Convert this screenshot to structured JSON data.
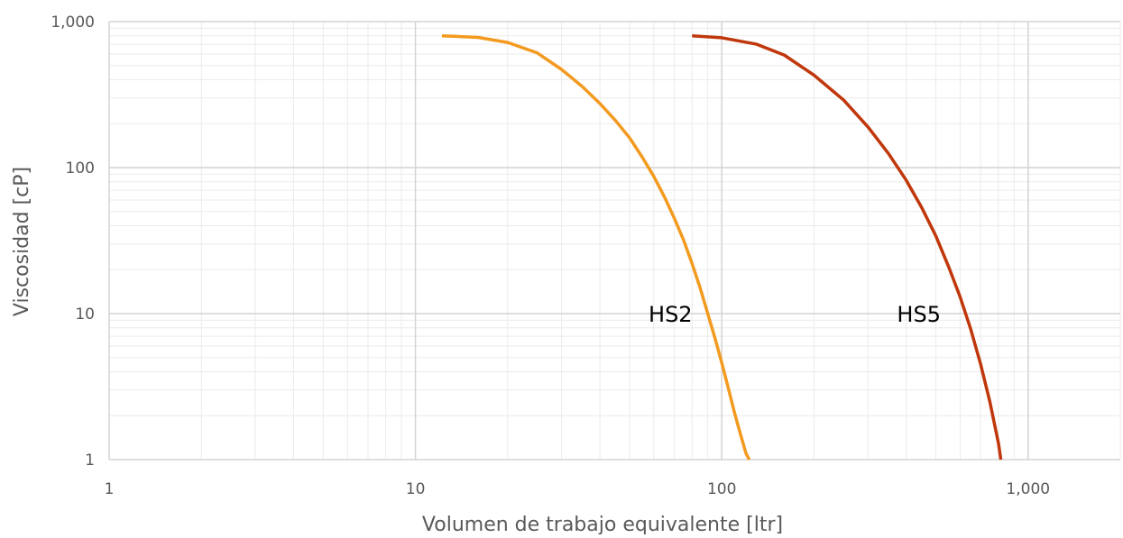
{
  "chart_data": {
    "type": "line",
    "title": "",
    "xlabel": "Volumen de trabajo equivalente [ltr]",
    "ylabel": "Viscosidad [cP]",
    "x_scale": "log",
    "y_scale": "log",
    "xlim": [
      1,
      2000
    ],
    "ylim": [
      1,
      1000
    ],
    "x_ticks": [
      1,
      10,
      100,
      1000
    ],
    "x_tick_labels": [
      "1",
      "10",
      "100",
      "1,000"
    ],
    "y_ticks": [
      1,
      10,
      100,
      1000
    ],
    "y_tick_labels": [
      "1",
      "10",
      "100",
      "1,000"
    ],
    "grid": true,
    "legend": "none",
    "series": [
      {
        "name": "HS2",
        "color": "#F39A20",
        "x": [
          12.2,
          16,
          20,
          25,
          30,
          35,
          40,
          45,
          50,
          55,
          60,
          65,
          70,
          75,
          80,
          85,
          90,
          95,
          100,
          105,
          110,
          115,
          120,
          123
        ],
        "y": [
          800,
          780,
          720,
          610,
          470,
          360,
          275,
          210,
          160,
          118,
          87,
          63,
          45,
          32,
          22,
          15,
          10,
          6.8,
          4.6,
          3.1,
          2.1,
          1.5,
          1.1,
          1.0
        ]
      },
      {
        "name": "HS5",
        "color": "#C0370B",
        "x": [
          80,
          100,
          130,
          160,
          200,
          250,
          300,
          350,
          400,
          450,
          500,
          550,
          600,
          650,
          700,
          750,
          800,
          815
        ],
        "y": [
          800,
          775,
          700,
          590,
          430,
          290,
          190,
          125,
          82,
          53,
          34,
          21,
          13,
          7.8,
          4.5,
          2.5,
          1.3,
          1.0
        ]
      }
    ],
    "annotations": [
      {
        "text": "HS2",
        "x": 68,
        "y": 10
      },
      {
        "text": "HS5",
        "x": 440,
        "y": 10
      }
    ]
  }
}
